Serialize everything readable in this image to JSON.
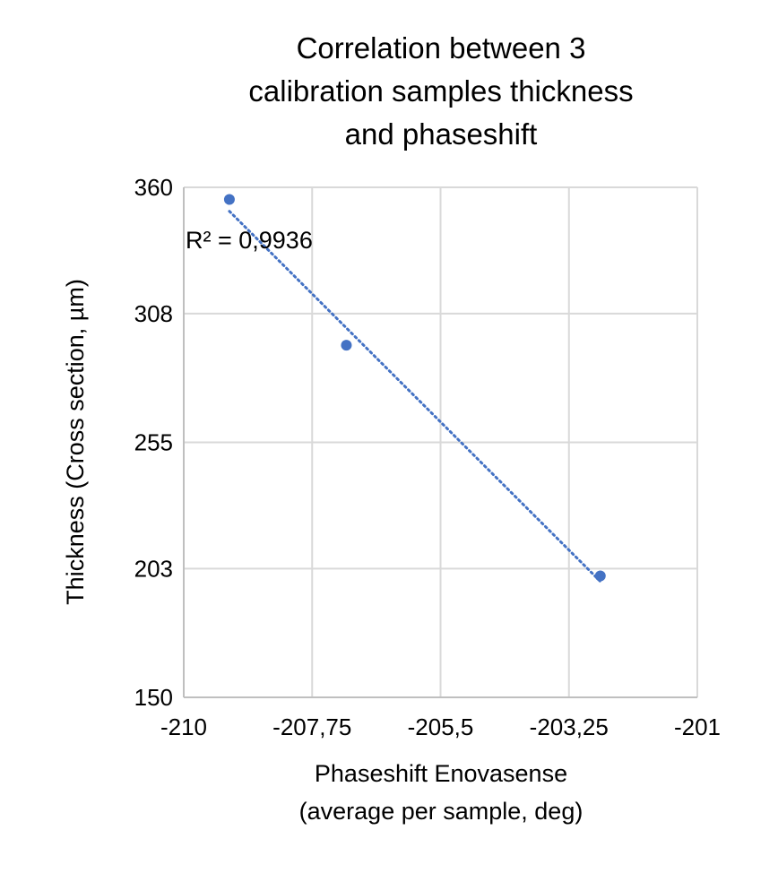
{
  "chart_data": {
    "type": "scatter",
    "title_lines": [
      "Correlation between 3",
      "calibration samples thickness",
      "and phaseshift"
    ],
    "xlabel_lines": [
      "Phaseshift Enovasense",
      "(average per sample, deg)"
    ],
    "ylabel": "Thickness (Cross section, µm)",
    "xlim": [
      -210,
      -201
    ],
    "ylim": [
      150,
      360
    ],
    "x_ticks": [
      -210,
      -207.75,
      -205.5,
      -203.25,
      -201
    ],
    "x_tick_labels": [
      "-210",
      "-207,75",
      "-205,5",
      "-203,25",
      "-201"
    ],
    "y_ticks": [
      150,
      203,
      255,
      308,
      360
    ],
    "y_tick_labels": [
      "150",
      "203",
      "255",
      "308",
      "360"
    ],
    "grid": true,
    "legend": "none",
    "series": [
      {
        "x": [
          -209.2,
          -207.15,
          -202.7
        ],
        "y": [
          355,
          295,
          200
        ]
      }
    ],
    "trendline": {
      "type": "linear",
      "style": "dotted",
      "x_range": [
        -209.2,
        -202.7
      ],
      "r_squared_label": "R² = 0,9936"
    },
    "colors": {
      "series": "#4472C4",
      "trendline": "#4472C4",
      "grid": "#D9D9D9",
      "axis": "#BFBFBF"
    }
  }
}
